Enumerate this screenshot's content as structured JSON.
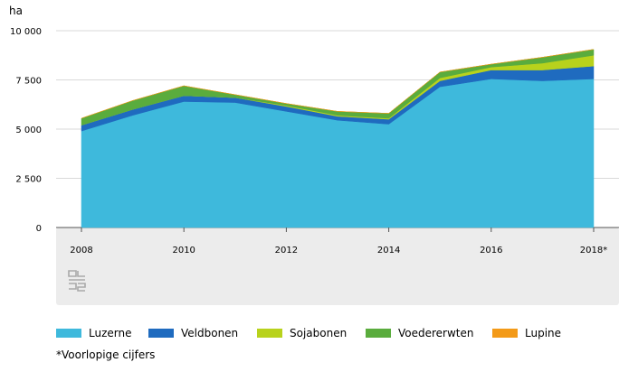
{
  "chart_data": {
    "type": "area",
    "stacked": true,
    "unit_label": "ha",
    "x": [
      "2008",
      "2009",
      "2010",
      "2011",
      "2012",
      "2013",
      "2014",
      "2015",
      "2016",
      "2017",
      "2018*"
    ],
    "x_tick_labels": [
      "2008",
      "2010",
      "2012",
      "2014",
      "2016",
      "2018*"
    ],
    "y_tick_labels": [
      "0",
      "2 500",
      "5 000",
      "7 500",
      "10 000"
    ],
    "ylim": [
      0,
      10000
    ],
    "grid": true,
    "legend_position": "bottom",
    "series": [
      {
        "name": "Luzerne",
        "color": "#3eb9dc",
        "values": [
          4900,
          5700,
          6400,
          6350,
          5900,
          5450,
          5250,
          7150,
          7550,
          7450,
          7550
        ]
      },
      {
        "name": "Veldbonen",
        "color": "#1f6bbf",
        "values": [
          300,
          300,
          300,
          250,
          250,
          200,
          250,
          300,
          450,
          550,
          650
        ]
      },
      {
        "name": "Sojabonen",
        "color": "#b8d21c",
        "values": [
          0,
          0,
          0,
          0,
          50,
          50,
          50,
          150,
          150,
          350,
          550
        ]
      },
      {
        "name": "Voedererwten",
        "color": "#5aac3d",
        "values": [
          350,
          450,
          500,
          150,
          100,
          200,
          250,
          300,
          150,
          300,
          300
        ]
      },
      {
        "name": "Lupine",
        "color": "#f39a18",
        "values": [
          0,
          0,
          0,
          0,
          0,
          0,
          0,
          0,
          0,
          0,
          0
        ]
      }
    ],
    "footnote": "*Voorlopige cijfers"
  }
}
